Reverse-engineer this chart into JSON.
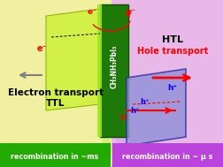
{
  "bg_left_color": "#f0f0a0",
  "bg_right_color": "#e8b8e8",
  "ttl_panel_color": "#d0f040",
  "ttl_panel_alpha": 0.9,
  "perovskite_color": "#1e7a08",
  "perovskite_edge_color": "#a0d040",
  "htl_panel_color": "#9090d8",
  "htl_panel_alpha": 0.8,
  "bar_left_color": "#22aa00",
  "bar_right_color": "#bb44dd",
  "bottom_bar_left_text": "recombination in ~ms",
  "bottom_bar_right_text": "recombination in ~ μ s",
  "perovskite_text": "CH₃NH₃PbI₃",
  "left_label1": "Electron transport",
  "left_label2": "TTL",
  "right_label1": "HTL",
  "right_label2": "Hole transport",
  "electron_label": "e⁻",
  "hole_label": "h⁺",
  "figsize": [
    2.52,
    1.89
  ],
  "dpi": 100
}
